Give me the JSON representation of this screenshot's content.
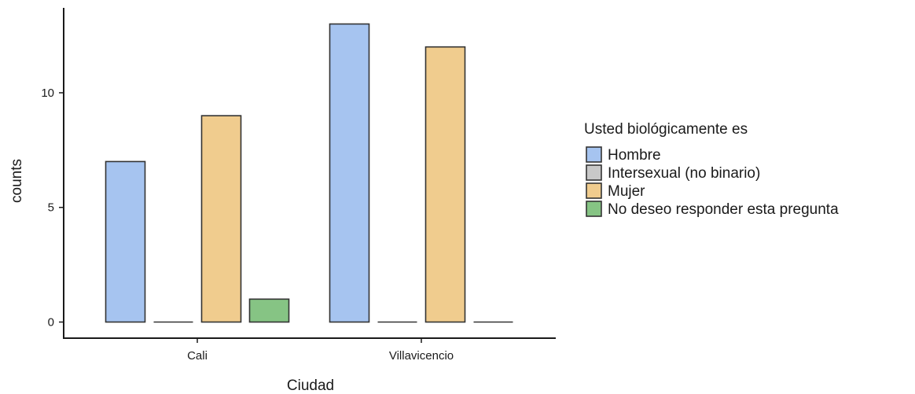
{
  "chart_data": {
    "type": "bar",
    "title": "",
    "xlabel": "Ciudad",
    "ylabel": "counts",
    "categories": [
      "Cali",
      "Villavicencio"
    ],
    "ylim": [
      0,
      13
    ],
    "yticks": [
      0,
      5,
      10
    ],
    "grid": false,
    "legend": {
      "title": "Usted biológicamente es",
      "placement": "right"
    },
    "series": [
      {
        "name": "Hombre",
        "color": "#a6c4f0",
        "values": [
          7,
          13
        ]
      },
      {
        "name": "Intersexual (no binario)",
        "color": "#c8c8c8",
        "values": [
          0,
          0
        ]
      },
      {
        "name": "Mujer",
        "color": "#f0cc8e",
        "values": [
          9,
          12
        ]
      },
      {
        "name": "No deseo responder esta pregunta",
        "color": "#86c484",
        "values": [
          1,
          0
        ]
      }
    ]
  }
}
